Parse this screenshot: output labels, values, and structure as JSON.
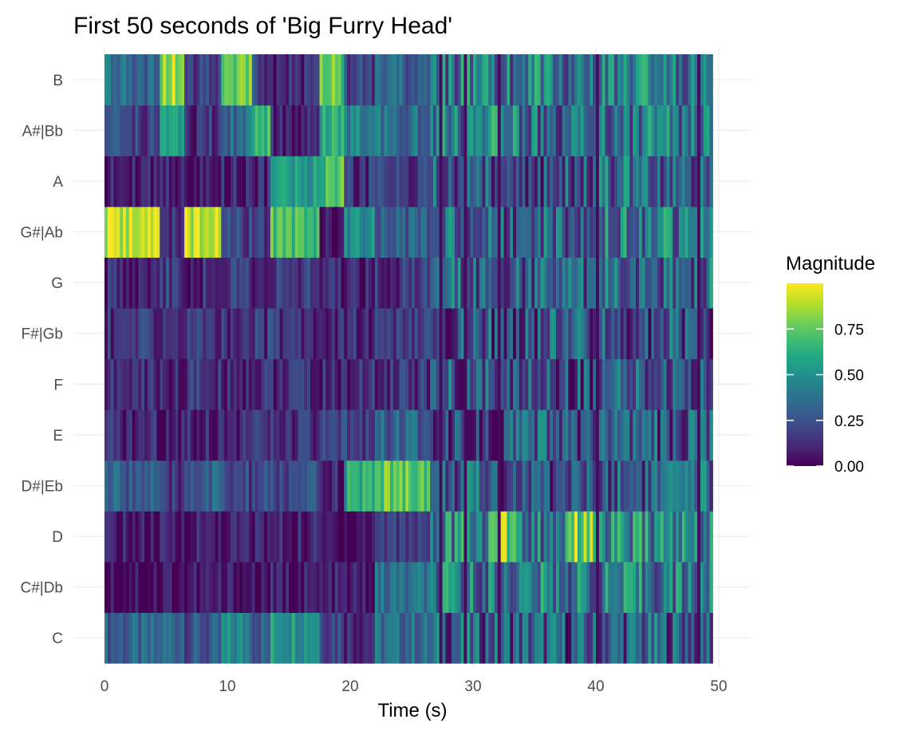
{
  "chart_data": {
    "type": "heatmap",
    "title": "First 50 seconds of 'Big Furry Head'",
    "xlabel": "Time (s)",
    "ylabel": "",
    "xlim": [
      0,
      50
    ],
    "x_ticks": [
      0,
      10,
      20,
      30,
      40,
      50
    ],
    "y_categories": [
      "C",
      "C#|Db",
      "D",
      "D#|Eb",
      "E",
      "F",
      "F#|Gb",
      "G",
      "G#|Ab",
      "A",
      "A#|Bb",
      "B"
    ],
    "legend": {
      "title": "Magnitude",
      "placement": "right",
      "range": [
        0,
        1
      ],
      "ticks": [
        0.0,
        0.25,
        0.5,
        0.75
      ],
      "tick_labels": [
        "0.00",
        "0.25",
        "0.50",
        "0.75"
      ],
      "colormap": "viridis"
    },
    "grid": true,
    "segments": [
      {
        "start": 0,
        "end": 4.5,
        "values": {
          "C": 0.3,
          "C#|Db": 0.05,
          "D": 0.05,
          "D#|Eb": 0.3,
          "E": 0.1,
          "F": 0.12,
          "F#|Gb": 0.15,
          "G": 0.12,
          "G#|Ab": 0.9,
          "A": 0.08,
          "A#|Bb": 0.2,
          "B": 0.35
        }
      },
      {
        "start": 4.5,
        "end": 6.5,
        "values": {
          "C": 0.35,
          "C#|Db": 0.05,
          "D": 0.05,
          "D#|Eb": 0.12,
          "E": 0.1,
          "F": 0.1,
          "F#|Gb": 0.15,
          "G": 0.18,
          "G#|Ab": 0.15,
          "A": 0.1,
          "A#|Bb": 0.55,
          "B": 0.85
        }
      },
      {
        "start": 6.5,
        "end": 9.5,
        "values": {
          "C": 0.25,
          "C#|Db": 0.05,
          "D": 0.08,
          "D#|Eb": 0.3,
          "E": 0.12,
          "F": 0.15,
          "F#|Gb": 0.15,
          "G": 0.12,
          "G#|Ab": 0.92,
          "A": 0.1,
          "A#|Bb": 0.15,
          "B": 0.2
        }
      },
      {
        "start": 9.5,
        "end": 12.0,
        "values": {
          "C": 0.45,
          "C#|Db": 0.05,
          "D": 0.08,
          "D#|Eb": 0.2,
          "E": 0.12,
          "F": 0.12,
          "F#|Gb": 0.15,
          "G": 0.18,
          "G#|Ab": 0.2,
          "A": 0.1,
          "A#|Bb": 0.35,
          "B": 0.8
        }
      },
      {
        "start": 12.0,
        "end": 13.3,
        "values": {
          "C": 0.3,
          "C#|Db": 0.05,
          "D": 0.08,
          "D#|Eb": 0.2,
          "E": 0.12,
          "F": 0.12,
          "F#|Gb": 0.15,
          "G": 0.15,
          "G#|Ab": 0.15,
          "A": 0.1,
          "A#|Bb": 0.7,
          "B": 0.2
        }
      },
      {
        "start": 13.3,
        "end": 17.5,
        "values": {
          "C": 0.55,
          "C#|Db": 0.05,
          "D": 0.08,
          "D#|Eb": 0.2,
          "E": 0.12,
          "F": 0.12,
          "F#|Gb": 0.15,
          "G": 0.15,
          "G#|Ab": 0.7,
          "A": 0.55,
          "A#|Bb": 0.1,
          "B": 0.1
        }
      },
      {
        "start": 17.5,
        "end": 19.5,
        "values": {
          "C": 0.25,
          "C#|Db": 0.05,
          "D": 0.05,
          "D#|Eb": 0.1,
          "E": 0.15,
          "F": 0.1,
          "F#|Gb": 0.12,
          "G": 0.12,
          "G#|Ab": 0.05,
          "A": 0.7,
          "A#|Bb": 0.6,
          "B": 0.75
        }
      },
      {
        "start": 19.5,
        "end": 22.0,
        "values": {
          "C": 0.15,
          "C#|Db": 0.05,
          "D": 0.05,
          "D#|Eb": 0.6,
          "E": 0.2,
          "F": 0.12,
          "F#|Gb": 0.12,
          "G": 0.1,
          "G#|Ab": 0.45,
          "A": 0.15,
          "A#|Bb": 0.45,
          "B": 0.2
        }
      },
      {
        "start": 22.0,
        "end": 26.5,
        "values": {
          "C": 0.35,
          "C#|Db": 0.35,
          "D": 0.2,
          "D#|Eb": 0.75,
          "E": 0.3,
          "F": 0.15,
          "F#|Gb": 0.15,
          "G": 0.15,
          "G#|Ab": 0.3,
          "A": 0.15,
          "A#|Bb": 0.35,
          "B": 0.3
        }
      },
      {
        "start": 26.5,
        "end": 31.5,
        "values": {
          "C": 0.3,
          "C#|Db": 0.4,
          "D": 0.45,
          "D#|Eb": 0.3,
          "E": 0.25,
          "F": 0.25,
          "F#|Gb": 0.25,
          "G": 0.35,
          "G#|Ab": 0.35,
          "A": 0.3,
          "A#|Bb": 0.4,
          "B": 0.4
        }
      },
      {
        "start": 31.5,
        "end": 33.5,
        "values": {
          "C": 0.3,
          "C#|Db": 0.4,
          "D": 0.85,
          "D#|Eb": 0.25,
          "E": 0.2,
          "F": 0.22,
          "F#|Gb": 0.22,
          "G": 0.3,
          "G#|Ab": 0.3,
          "A": 0.25,
          "A#|Bb": 0.45,
          "B": 0.35
        }
      },
      {
        "start": 33.5,
        "end": 37.5,
        "values": {
          "C": 0.3,
          "C#|Db": 0.4,
          "D": 0.4,
          "D#|Eb": 0.25,
          "E": 0.25,
          "F": 0.25,
          "F#|Gb": 0.25,
          "G": 0.3,
          "G#|Ab": 0.35,
          "A": 0.25,
          "A#|Bb": 0.35,
          "B": 0.4
        }
      },
      {
        "start": 37.5,
        "end": 40.0,
        "values": {
          "C": 0.25,
          "C#|Db": 0.4,
          "D": 0.85,
          "D#|Eb": 0.25,
          "E": 0.22,
          "F": 0.25,
          "F#|Gb": 0.25,
          "G": 0.3,
          "G#|Ab": 0.3,
          "A": 0.25,
          "A#|Bb": 0.35,
          "B": 0.35
        }
      },
      {
        "start": 40.0,
        "end": 49.5,
        "values": {
          "C": 0.3,
          "C#|Db": 0.4,
          "D": 0.45,
          "D#|Eb": 0.3,
          "E": 0.25,
          "F": 0.25,
          "F#|Gb": 0.25,
          "G": 0.35,
          "G#|Ab": 0.4,
          "A": 0.35,
          "A#|Bb": 0.4,
          "B": 0.4
        }
      }
    ]
  }
}
